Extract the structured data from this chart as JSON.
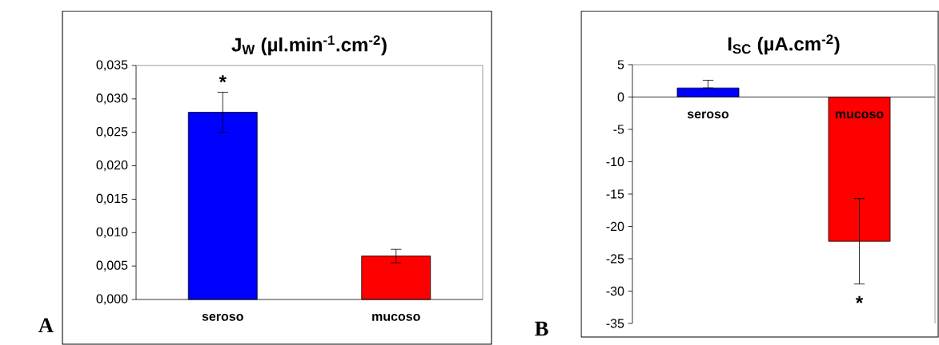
{
  "chart_data": [
    {
      "type": "bar",
      "title": "J$_{W}$ (µl.min$^{-1}$.cm$^{-2}$)",
      "categories": [
        "seroso",
        "mucoso"
      ],
      "values": [
        0.028,
        0.0065
      ],
      "colors": [
        "#0000ff",
        "#ff0000"
      ],
      "errors": [
        0.003,
        0.001
      ],
      "ylim": [
        0,
        0.035
      ],
      "yticks": [
        {
          "value": 0,
          "label": "0,000"
        },
        {
          "value": 0.005,
          "label": "0,005"
        },
        {
          "value": 0.01,
          "label": "0,010"
        },
        {
          "value": 0.015,
          "label": "0,015"
        },
        {
          "value": 0.02,
          "label": "0,020"
        },
        {
          "value": 0.025,
          "label": "0,025"
        },
        {
          "value": 0.03,
          "label": "0,030"
        },
        {
          "value": 0.035,
          "label": "0,035"
        }
      ],
      "annotations": [
        "*",
        "A"
      ]
    },
    {
      "type": "bar",
      "title": "I$_{SC}$ (µA.cm$^{-2}$)",
      "categories": [
        "seroso",
        "mucoso"
      ],
      "values": [
        1.4,
        -22.3
      ],
      "colors": [
        "#0000ff",
        "#ff0000"
      ],
      "errors": [
        [
          1.4,
          2.6
        ],
        [
          -28.9,
          -15.7
        ]
      ],
      "ylim": [
        -35,
        5
      ],
      "yticks": [
        -35,
        -30,
        -25,
        -20,
        -15,
        -10,
        -5,
        0,
        5
      ],
      "annotations": [
        "*",
        "B"
      ]
    }
  ]
}
